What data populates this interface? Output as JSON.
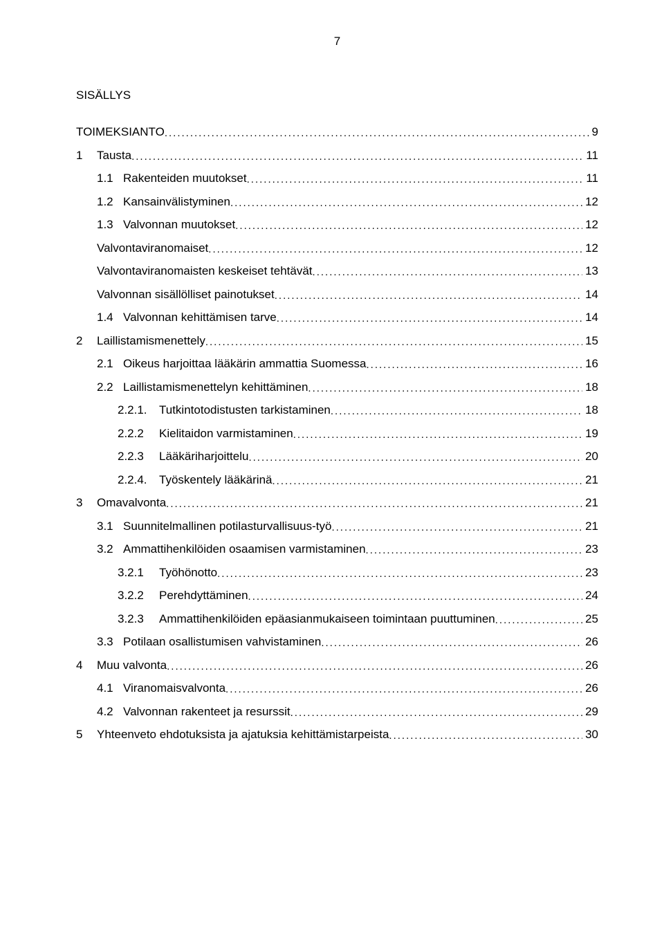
{
  "page_number": "7",
  "title": "SISÄLLYS",
  "toc": [
    {
      "indent": 0,
      "label": "",
      "text": "TOIMEKSIANTO",
      "page": "9"
    },
    {
      "indent": 0,
      "label": "1",
      "text": "Tausta",
      "page": "11"
    },
    {
      "indent": 1,
      "label": "1.1",
      "text": "Rakenteiden muutokset",
      "page": "11"
    },
    {
      "indent": 1,
      "label": "1.2",
      "text": "Kansainvälistyminen",
      "page": "12"
    },
    {
      "indent": 1,
      "label": "1.3",
      "text": "Valvonnan muutokset",
      "page": "12"
    },
    {
      "indent": 1,
      "label": "",
      "text": "Valvontaviranomaiset",
      "page": "12"
    },
    {
      "indent": 1,
      "label": "",
      "text": "Valvontaviranomaisten keskeiset tehtävät",
      "page": "13"
    },
    {
      "indent": 1,
      "label": "",
      "text": "Valvonnan sisällölliset painotukset",
      "page": "14"
    },
    {
      "indent": 1,
      "label": "1.4",
      "text": "Valvonnan kehittämisen tarve",
      "page": "14"
    },
    {
      "indent": 0,
      "label": "2",
      "text": "Laillistamismenettely",
      "page": "15"
    },
    {
      "indent": 1,
      "label": "2.1",
      "text": "Oikeus harjoittaa lääkärin ammattia Suomessa",
      "page": "16"
    },
    {
      "indent": 1,
      "label": "2.2",
      "text": "Laillistamismenettelyn kehittäminen",
      "page": "18"
    },
    {
      "indent": 2,
      "label": "2.2.1.",
      "text": "Tutkintotodistusten tarkistaminen",
      "page": "18"
    },
    {
      "indent": 2,
      "label": "2.2.2",
      "text": "Kielitaidon varmistaminen",
      "page": "19"
    },
    {
      "indent": 2,
      "label": "2.2.3",
      "text": "Lääkäriharjoittelu",
      "page": "20"
    },
    {
      "indent": 2,
      "label": "2.2.4.",
      "text": "Työskentely lääkärinä",
      "page": "21"
    },
    {
      "indent": 0,
      "label": "3",
      "text": "Omavalvonta",
      "page": "21"
    },
    {
      "indent": 1,
      "label": "3.1",
      "text": "Suunnitelmallinen potilasturvallisuus-työ",
      "page": "21"
    },
    {
      "indent": 1,
      "label": "3.2",
      "text": "Ammattihenkilöiden osaamisen varmistaminen",
      "page": "23"
    },
    {
      "indent": 2,
      "label": "3.2.1",
      "text": "Työhönotto",
      "page": "23"
    },
    {
      "indent": 2,
      "label": "3.2.2",
      "text": "Perehdyttäminen",
      "page": "24"
    },
    {
      "indent": 2,
      "label": "3.2.3",
      "text": "Ammattihenkilöiden epäasianmukaiseen toimintaan puuttuminen",
      "page": "25"
    },
    {
      "indent": 1,
      "label": "3.3",
      "text": "Potilaan osallistumisen vahvistaminen",
      "page": "26"
    },
    {
      "indent": 0,
      "label": "4",
      "text": "Muu valvonta",
      "page": "26"
    },
    {
      "indent": 1,
      "label": "4.1",
      "text": "Viranomaisvalvonta",
      "page": "26"
    },
    {
      "indent": 1,
      "label": "4.2",
      "text": "Valvonnan rakenteet ja resurssit",
      "page": "29"
    },
    {
      "indent": 0,
      "label": "5",
      "text": "Yhteenveto ehdotuksista ja ajatuksia kehittämistarpeista",
      "page": "30"
    }
  ],
  "label_widths": {
    "l0": "30px",
    "l1": "38px",
    "l2": "60px"
  }
}
